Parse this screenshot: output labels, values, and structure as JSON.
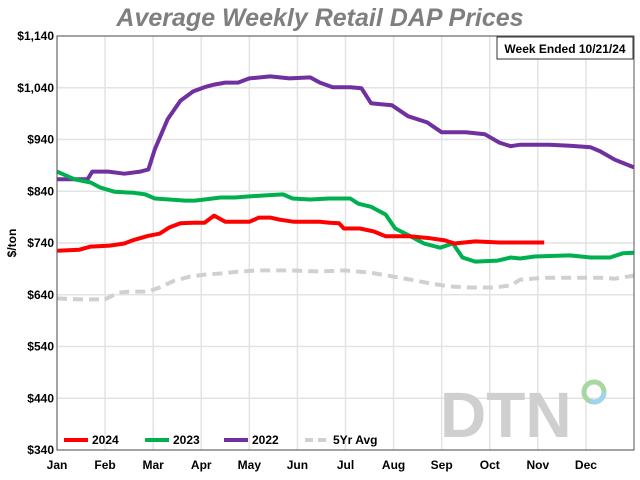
{
  "chart_data": {
    "type": "line",
    "title": "Average Weekly Retail DAP Prices",
    "annotation": "Week Ended 10/21/24",
    "ylabel": "$/ton",
    "xlabel": "",
    "ylim": [
      340,
      1140
    ],
    "yticks": [
      340,
      440,
      540,
      640,
      740,
      840,
      940,
      1040,
      1140
    ],
    "ytick_labels": [
      "$340",
      "$440",
      "$540",
      "$640",
      "$740",
      "$840",
      "$940",
      "$1,040",
      "$1,140"
    ],
    "xtick_labels": [
      "Jan",
      "Feb",
      "Mar",
      "Apr",
      "May",
      "Jun",
      "Jul",
      "Aug",
      "Sep",
      "Oct",
      "Nov",
      "Dec"
    ],
    "grid": true,
    "legend_position": "bottom-left",
    "series": [
      {
        "name": "2024",
        "color": "#ff0000",
        "dashed": false,
        "x": [
          "01-01",
          "01-15",
          "01-22",
          "02-04",
          "02-13",
          "02-19",
          "02-28",
          "03-05",
          "03-11",
          "03-18",
          "03-26",
          "04-03",
          "04-09",
          "04-16",
          "04-25",
          "05-01",
          "05-07",
          "05-14",
          "05-20",
          "05-29",
          "06-09",
          "06-15",
          "06-21",
          "06-27",
          "06-30",
          "07-10",
          "07-19",
          "07-26",
          "08-05",
          "08-11",
          "08-24",
          "09-03",
          "09-09",
          "09-22",
          "10-07",
          "10-14",
          "10-20",
          "10-29",
          "11-05"
        ],
        "y": [
          725,
          727,
          733,
          735,
          739,
          746,
          754,
          758,
          770,
          778,
          779,
          779,
          793,
          781,
          781,
          781,
          789,
          789,
          785,
          781,
          781,
          781,
          779,
          778,
          768,
          768,
          762,
          753,
          753,
          753,
          749,
          745,
          739,
          743,
          741,
          741,
          741,
          741,
          741
        ]
      },
      {
        "name": "2023",
        "color": "#00b050",
        "dashed": false,
        "x": [
          "01-01",
          "01-12",
          "01-22",
          "01-28",
          "02-07",
          "02-19",
          "02-26",
          "03-02",
          "03-11",
          "03-21",
          "03-27",
          "04-03",
          "04-13",
          "04-22",
          "05-01",
          "05-11",
          "05-22",
          "05-28",
          "06-09",
          "06-21",
          "07-04",
          "07-09",
          "07-17",
          "07-26",
          "08-02",
          "08-11",
          "08-20",
          "08-30",
          "09-08",
          "09-14",
          "09-22",
          "10-06",
          "10-14",
          "10-20",
          "10-29",
          "11-21",
          "12-04",
          "12-16",
          "12-24",
          "12-31"
        ],
        "y": [
          878,
          863,
          857,
          847,
          839,
          837,
          834,
          826,
          824,
          822,
          822,
          824,
          828,
          828,
          830,
          832,
          834,
          826,
          824,
          826,
          826,
          816,
          810,
          795,
          768,
          754,
          739,
          731,
          739,
          712,
          704,
          706,
          712,
          710,
          714,
          716,
          712,
          712,
          720,
          721
        ]
      },
      {
        "name": "2022",
        "color": "#7030a0",
        "dashed": false,
        "x": [
          "01-01",
          "01-20",
          "01-23",
          "02-03",
          "02-13",
          "02-23",
          "02-28",
          "03-02",
          "03-10",
          "03-18",
          "03-26",
          "04-03",
          "04-09",
          "04-16",
          "04-24",
          "05-01",
          "05-14",
          "05-26",
          "06-09",
          "06-15",
          "06-23",
          "07-04",
          "07-11",
          "07-17",
          "07-30",
          "08-10",
          "08-22",
          "09-01",
          "09-16",
          "09-28",
          "10-07",
          "10-14",
          "10-20",
          "11-08",
          "11-21",
          "12-04",
          "12-10",
          "12-19",
          "12-31"
        ],
        "y": [
          863,
          863,
          878,
          878,
          874,
          878,
          882,
          921,
          979,
          1015,
          1033,
          1041,
          1046,
          1050,
          1050,
          1058,
          1062,
          1058,
          1060,
          1050,
          1041,
          1041,
          1039,
          1010,
          1006,
          985,
          973,
          954,
          954,
          950,
          934,
          927,
          930,
          930,
          928,
          925,
          917,
          901,
          886
        ]
      },
      {
        "name": "5Yr Avg",
        "color": "#d0d0d0",
        "dashed": true,
        "x": [
          "01-01",
          "01-15",
          "02-01",
          "02-09",
          "02-16",
          "02-28",
          "03-05",
          "03-14",
          "03-24",
          "04-03",
          "04-13",
          "04-25",
          "05-07",
          "05-26",
          "06-15",
          "06-30",
          "07-16",
          "08-05",
          "08-24",
          "09-06",
          "09-19",
          "10-04",
          "10-14",
          "10-20",
          "11-05",
          "11-27",
          "12-10",
          "12-19",
          "12-31"
        ],
        "y": [
          633,
          631,
          631,
          644,
          646,
          646,
          654,
          667,
          675,
          679,
          681,
          685,
          687,
          687,
          685,
          687,
          683,
          673,
          662,
          656,
          654,
          654,
          658,
          669,
          673,
          673,
          673,
          671,
          677
        ]
      }
    ]
  },
  "logo": {
    "text": "DTN"
  }
}
